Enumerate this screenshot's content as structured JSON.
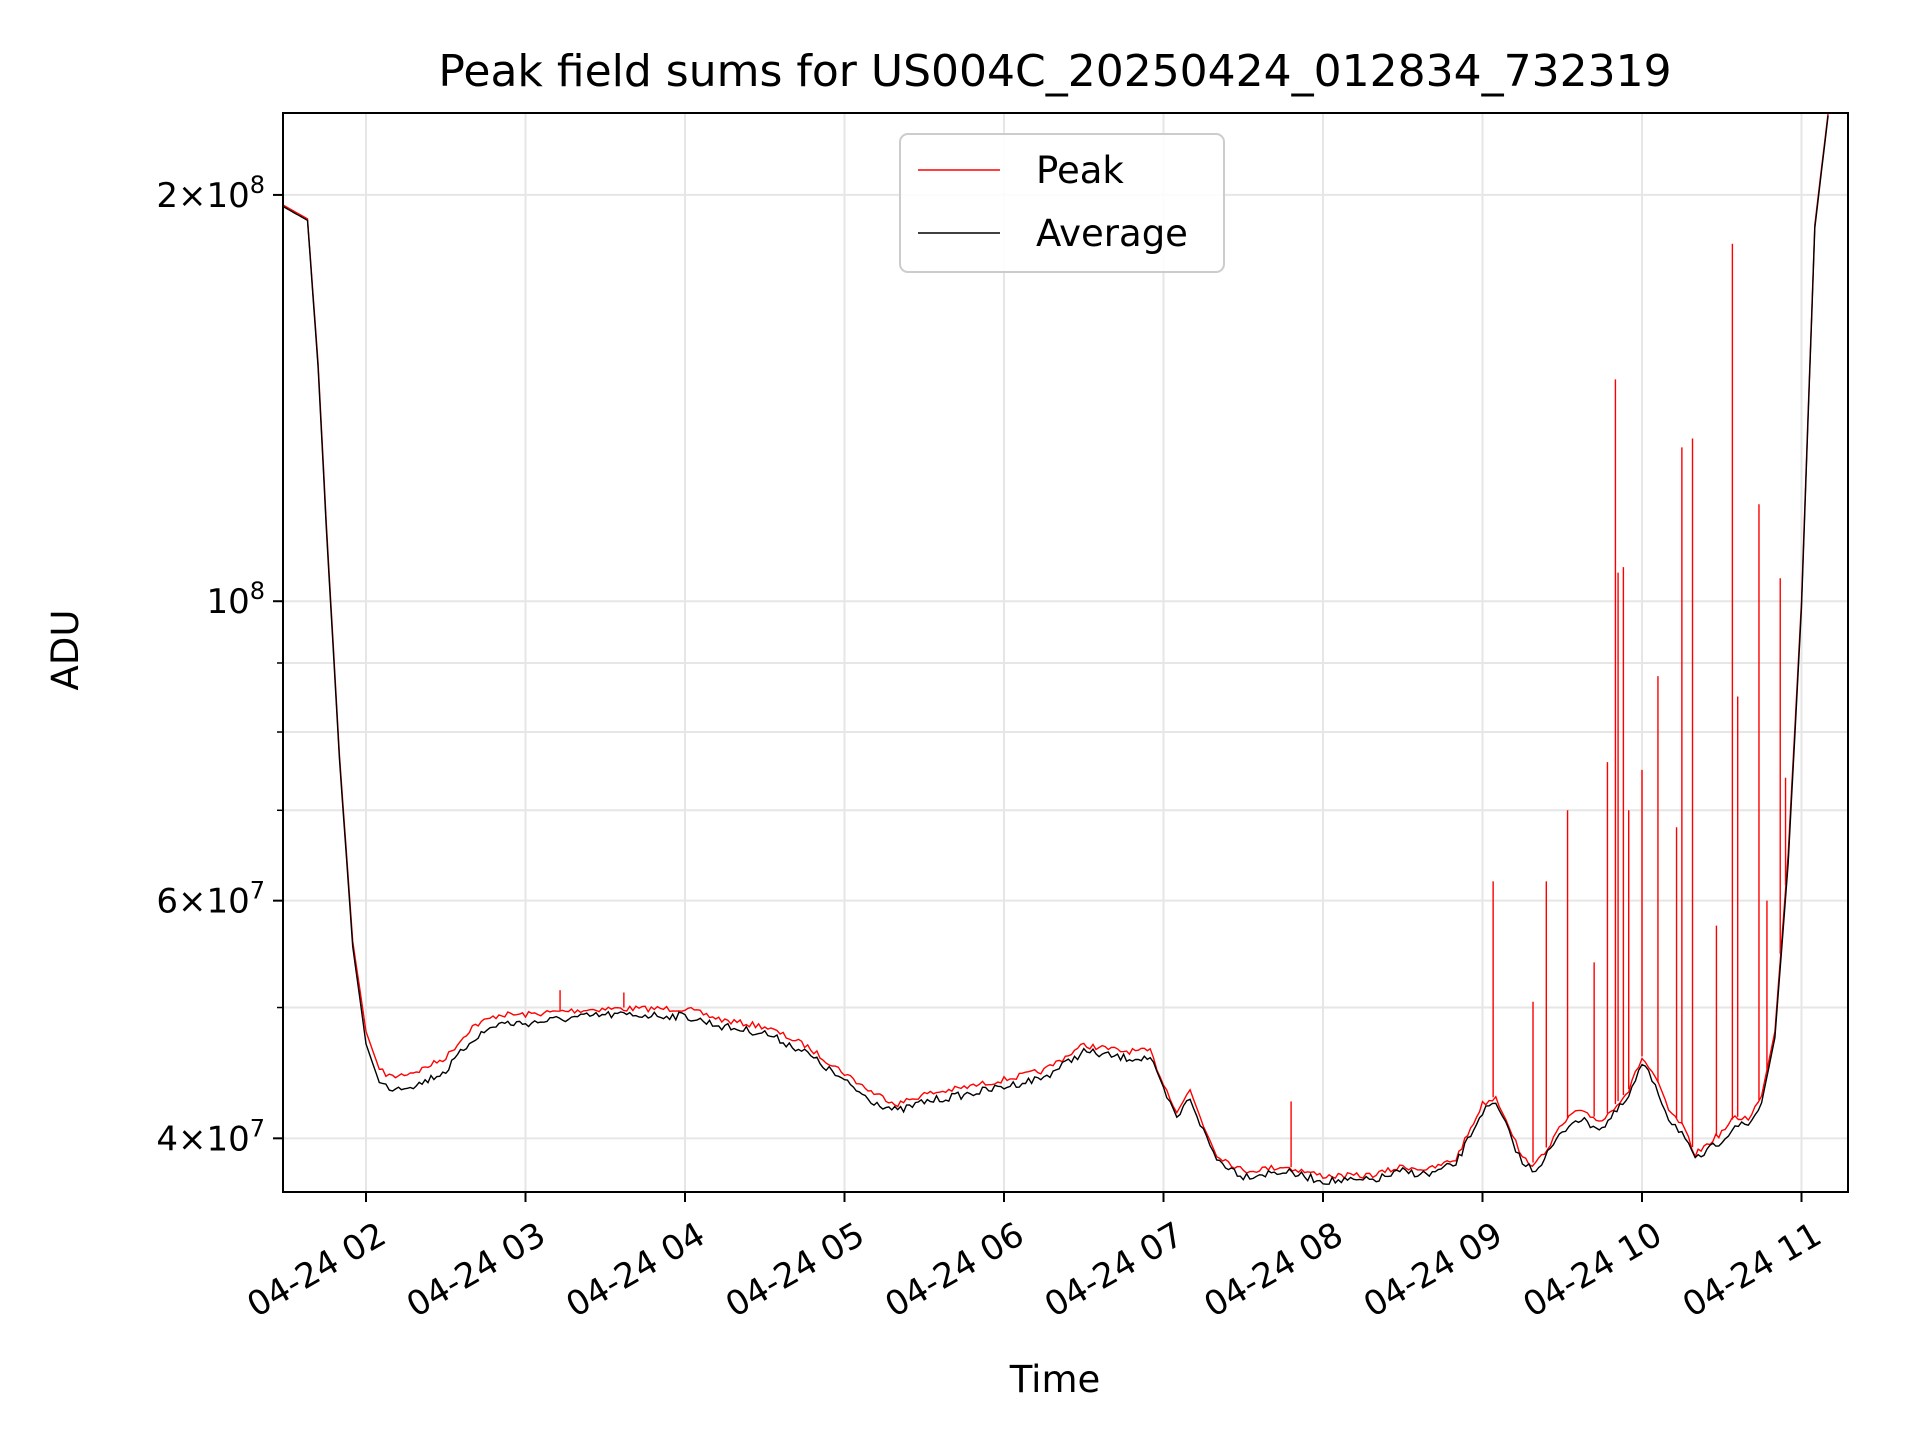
{
  "chart_data": {
    "type": "line",
    "title": "Peak field sums for US004C_20250424_012834_732319",
    "xlabel": "Time",
    "ylabel": "ADU",
    "y_scale": "log",
    "ylim": [
      36500000,
      230000000
    ],
    "xlim": [
      "2025-04-24 01:28",
      "2025-04-24 11:00"
    ],
    "grid": true,
    "legend_position": "upper center",
    "x_ticks": [
      "04-24 02",
      "04-24 03",
      "04-24 04",
      "04-24 05",
      "04-24 06",
      "04-24 07",
      "04-24 08",
      "04-24 09",
      "04-24 10",
      "04-24 11"
    ],
    "x_tick_values": [
      "2025-04-24 02:00",
      "2025-04-24 03:00",
      "2025-04-24 04:00",
      "2025-04-24 05:00",
      "2025-04-24 06:00",
      "2025-04-24 07:00",
      "2025-04-24 08:00",
      "2025-04-24 09:00",
      "2025-04-24 10:00",
      "2025-04-24 11:00"
    ],
    "y_major_ticks": [
      {
        "value": 40000000,
        "mantissa": "4",
        "exponent": "7"
      },
      {
        "value": 60000000,
        "mantissa": "6",
        "exponent": "7"
      },
      {
        "value": 100000000,
        "mantissa": "",
        "exponent": "8"
      },
      {
        "value": 200000000,
        "mantissa": "2",
        "exponent": "8"
      }
    ],
    "y_minor_ticks": [
      50000000,
      70000000,
      80000000,
      90000000
    ],
    "series": [
      {
        "name": "Peak",
        "color": "#ff0000",
        "x": [
          "2025-04-24 01:28",
          "2025-04-24 01:38",
          "2025-04-24 01:42",
          "2025-04-24 01:45",
          "2025-04-24 01:50",
          "2025-04-24 01:55",
          "2025-04-24 02:00",
          "2025-04-24 02:05",
          "2025-04-24 02:10",
          "2025-04-24 02:20",
          "2025-04-24 02:30",
          "2025-04-24 02:40",
          "2025-04-24 02:50",
          "2025-04-24 03:00",
          "2025-04-24 03:15",
          "2025-04-24 03:30",
          "2025-04-24 03:45",
          "2025-04-24 04:00",
          "2025-04-24 04:15",
          "2025-04-24 04:30",
          "2025-04-24 04:45",
          "2025-04-24 05:00",
          "2025-04-24 05:10",
          "2025-04-24 05:20",
          "2025-04-24 05:30",
          "2025-04-24 05:45",
          "2025-04-24 06:00",
          "2025-04-24 06:15",
          "2025-04-24 06:30",
          "2025-04-24 06:45",
          "2025-04-24 06:55",
          "2025-04-24 07:00",
          "2025-04-24 07:05",
          "2025-04-24 07:10",
          "2025-04-24 07:15",
          "2025-04-24 07:20",
          "2025-04-24 07:30",
          "2025-04-24 07:35",
          "2025-04-24 07:45",
          "2025-04-24 08:00",
          "2025-04-24 08:15",
          "2025-04-24 08:20",
          "2025-04-24 08:30",
          "2025-04-24 08:40",
          "2025-04-24 08:50",
          "2025-04-24 09:00",
          "2025-04-24 09:05",
          "2025-04-24 09:10",
          "2025-04-24 09:15",
          "2025-04-24 09:20",
          "2025-04-24 09:30",
          "2025-04-24 09:35",
          "2025-04-24 09:45",
          "2025-04-24 09:55",
          "2025-04-24 10:00",
          "2025-04-24 10:05",
          "2025-04-24 10:10",
          "2025-04-24 10:15",
          "2025-04-24 10:20",
          "2025-04-24 10:30",
          "2025-04-24 10:35",
          "2025-04-24 10:40",
          "2025-04-24 10:45",
          "2025-04-24 10:50",
          "2025-04-24 10:55",
          "2025-04-24 11:00",
          "2025-04-24 11:05",
          "2025-04-24 11:10"
        ],
        "y": [
          197000000,
          192000000,
          150000000,
          115000000,
          77000000,
          56000000,
          48000000,
          45000000,
          44500000,
          45000000,
          46000000,
          48500000,
          49500000,
          49500000,
          49800000,
          50000000,
          50000000,
          50000000,
          49000000,
          48500000,
          47000000,
          44800000,
          43400000,
          42500000,
          43200000,
          43700000,
          44300000,
          45000000,
          47000000,
          46500000,
          46500000,
          44000000,
          42000000,
          43500000,
          41000000,
          39000000,
          37900000,
          38000000,
          38200000,
          37600000,
          37600000,
          37700000,
          38200000,
          38000000,
          38700000,
          42500000,
          43000000,
          41000000,
          38700000,
          38300000,
          41000000,
          42000000,
          41300000,
          43500000,
          46000000,
          44500000,
          42000000,
          41000000,
          39000000,
          40500000,
          41500000,
          41500000,
          43000000,
          48000000,
          65000000,
          100000000,
          190000000,
          230000000
        ],
        "spikes": [
          {
            "x": "2025-04-24 03:13",
            "y": 51500000
          },
          {
            "x": "2025-04-24 03:37",
            "y": 51300000
          },
          {
            "x": "2025-04-24 07:48",
            "y": 42600000
          },
          {
            "x": "2025-04-24 09:04",
            "y": 62000000
          },
          {
            "x": "2025-04-24 09:19",
            "y": 50500000
          },
          {
            "x": "2025-04-24 09:24",
            "y": 62000000
          },
          {
            "x": "2025-04-24 09:32",
            "y": 70000000
          },
          {
            "x": "2025-04-24 09:42",
            "y": 54000000
          },
          {
            "x": "2025-04-24 09:47",
            "y": 76000000
          },
          {
            "x": "2025-04-24 09:50",
            "y": 146000000
          },
          {
            "x": "2025-04-24 09:51",
            "y": 105000000
          },
          {
            "x": "2025-04-24 09:53",
            "y": 106000000
          },
          {
            "x": "2025-04-24 09:55",
            "y": 70000000
          },
          {
            "x": "2025-04-24 10:00",
            "y": 75000000
          },
          {
            "x": "2025-04-24 10:06",
            "y": 88000000
          },
          {
            "x": "2025-04-24 10:13",
            "y": 68000000
          },
          {
            "x": "2025-04-24 10:15",
            "y": 130000000
          },
          {
            "x": "2025-04-24 10:19",
            "y": 132000000
          },
          {
            "x": "2025-04-24 10:28",
            "y": 57500000
          },
          {
            "x": "2025-04-24 10:34",
            "y": 184000000
          },
          {
            "x": "2025-04-24 10:36",
            "y": 85000000
          },
          {
            "x": "2025-04-24 10:44",
            "y": 118000000
          },
          {
            "x": "2025-04-24 10:47",
            "y": 60000000
          },
          {
            "x": "2025-04-24 10:52",
            "y": 104000000
          },
          {
            "x": "2025-04-24 10:54",
            "y": 74000000
          }
        ]
      },
      {
        "name": "Average",
        "color": "#000000",
        "x": [
          "2025-04-24 01:28",
          "2025-04-24 01:38",
          "2025-04-24 01:42",
          "2025-04-24 01:45",
          "2025-04-24 01:50",
          "2025-04-24 01:55",
          "2025-04-24 02:00",
          "2025-04-24 02:05",
          "2025-04-24 02:10",
          "2025-04-24 02:20",
          "2025-04-24 02:30",
          "2025-04-24 02:40",
          "2025-04-24 02:50",
          "2025-04-24 03:00",
          "2025-04-24 03:15",
          "2025-04-24 03:30",
          "2025-04-24 03:45",
          "2025-04-24 04:00",
          "2025-04-24 04:15",
          "2025-04-24 04:30",
          "2025-04-24 04:45",
          "2025-04-24 05:00",
          "2025-04-24 05:10",
          "2025-04-24 05:20",
          "2025-04-24 05:30",
          "2025-04-24 05:45",
          "2025-04-24 06:00",
          "2025-04-24 06:15",
          "2025-04-24 06:30",
          "2025-04-24 06:45",
          "2025-04-24 06:55",
          "2025-04-24 07:00",
          "2025-04-24 07:05",
          "2025-04-24 07:10",
          "2025-04-24 07:15",
          "2025-04-24 07:20",
          "2025-04-24 07:30",
          "2025-04-24 07:35",
          "2025-04-24 07:45",
          "2025-04-24 08:00",
          "2025-04-24 08:15",
          "2025-04-24 08:20",
          "2025-04-24 08:30",
          "2025-04-24 08:40",
          "2025-04-24 08:50",
          "2025-04-24 09:00",
          "2025-04-24 09:05",
          "2025-04-24 09:10",
          "2025-04-24 09:15",
          "2025-04-24 09:20",
          "2025-04-24 09:30",
          "2025-04-24 09:35",
          "2025-04-24 09:45",
          "2025-04-24 09:55",
          "2025-04-24 10:00",
          "2025-04-24 10:05",
          "2025-04-24 10:10",
          "2025-04-24 10:15",
          "2025-04-24 10:20",
          "2025-04-24 10:30",
          "2025-04-24 10:35",
          "2025-04-24 10:40",
          "2025-04-24 10:45",
          "2025-04-24 10:50",
          "2025-04-24 10:55",
          "2025-04-24 11:00",
          "2025-04-24 11:05",
          "2025-04-24 11:10"
        ],
        "y": [
          196500000,
          191500000,
          149000000,
          114000000,
          76500000,
          55500000,
          47000000,
          44000000,
          43700000,
          44000000,
          45000000,
          47500000,
          48800000,
          48800000,
          49200000,
          49500000,
          49500000,
          49400000,
          48500000,
          48000000,
          46500000,
          44200000,
          42800000,
          42000000,
          42700000,
          43200000,
          43800000,
          44500000,
          46500000,
          46000000,
          46000000,
          43500000,
          41500000,
          43000000,
          40600000,
          38700000,
          37600000,
          37700000,
          37900000,
          37300000,
          37300000,
          37400000,
          37900000,
          37700000,
          38400000,
          42000000,
          42500000,
          40500000,
          38400000,
          38000000,
          40500000,
          41500000,
          40800000,
          43000000,
          45500000,
          44000000,
          41500000,
          40500000,
          38600000,
          40000000,
          41000000,
          41000000,
          42500000,
          47500000,
          64000000,
          99000000,
          189000000,
          229000000
        ]
      }
    ]
  }
}
